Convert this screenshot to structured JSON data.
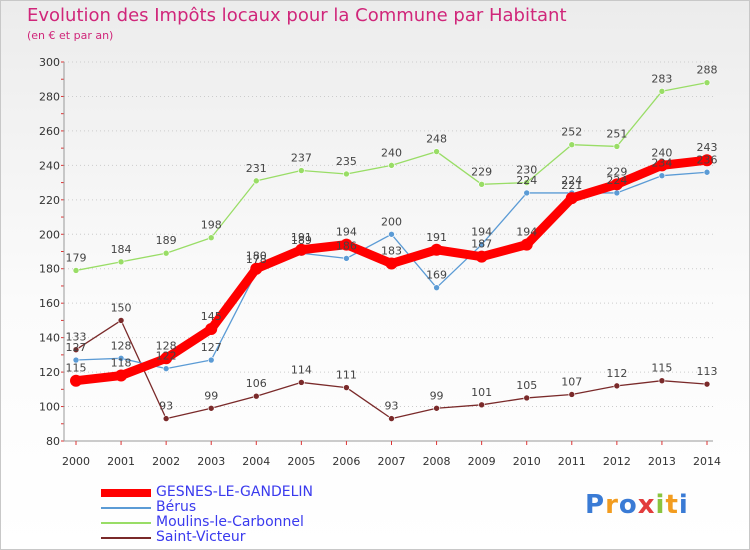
{
  "title": "Evolution des Impôts locaux pour la Commune par Habitant",
  "subtitle": "(en € et par an)",
  "brand": "Proxiti",
  "chart_data": {
    "type": "line",
    "title": "Evolution des Impôts locaux pour la Commune par Habitant",
    "subtitle": "(en € et par an)",
    "xlabel": "",
    "ylabel": "",
    "x": [
      "2000",
      "2001",
      "2002",
      "2003",
      "2004",
      "2005",
      "2006",
      "2007",
      "2008",
      "2009",
      "2010",
      "2011",
      "2012",
      "2013",
      "2014"
    ],
    "ylim": [
      80,
      300
    ],
    "yticks": [
      80,
      100,
      120,
      140,
      160,
      180,
      200,
      220,
      240,
      260,
      280,
      300
    ],
    "grid": "horizontal-dotted",
    "legend_position": "bottom-left",
    "series": [
      {
        "name": "GESNES-LE-GANDELIN",
        "color": "#ff0000",
        "style": "thick",
        "values": [
          115,
          118,
          128,
          145,
          180,
          191,
          194,
          183,
          191,
          187,
          194,
          221,
          229,
          240,
          243
        ],
        "labels": [
          "115",
          "118",
          "128",
          "145",
          "180",
          "191",
          "194",
          "183",
          "191",
          "187",
          "194",
          "221",
          "229",
          "240",
          "243"
        ]
      },
      {
        "name": "Bérus",
        "color": "#5b9bd5",
        "style": "thin",
        "values": [
          127,
          128,
          122,
          127,
          178,
          189,
          186,
          200,
          169,
          194,
          224,
          224,
          224,
          234,
          236
        ],
        "labels": [
          "127",
          "128",
          "122",
          "127",
          "178",
          "189",
          "186",
          "200",
          "169",
          "194",
          "224",
          "224",
          "224",
          "234",
          "236"
        ]
      },
      {
        "name": "Moulins-le-Carbonnel",
        "color": "#99dd66",
        "style": "thin",
        "values": [
          179,
          184,
          189,
          198,
          231,
          237,
          235,
          240,
          248,
          229,
          230,
          252,
          251,
          283,
          288
        ],
        "labels": [
          "179",
          "184",
          "189",
          "198",
          "231",
          "237",
          "235",
          "240",
          "248",
          "229",
          "230",
          "252",
          "251",
          "283",
          "288"
        ]
      },
      {
        "name": "Saint-Victeur",
        "color": "#7a2a2a",
        "style": "thin",
        "values": [
          133,
          150,
          93,
          99,
          106,
          114,
          111,
          93,
          99,
          101,
          105,
          107,
          112,
          115,
          113
        ],
        "labels": [
          "133",
          "150",
          "93",
          "99",
          "106",
          "114",
          "111",
          "93",
          "99",
          "101",
          "105",
          "107",
          "112",
          "115",
          "113"
        ]
      }
    ]
  }
}
